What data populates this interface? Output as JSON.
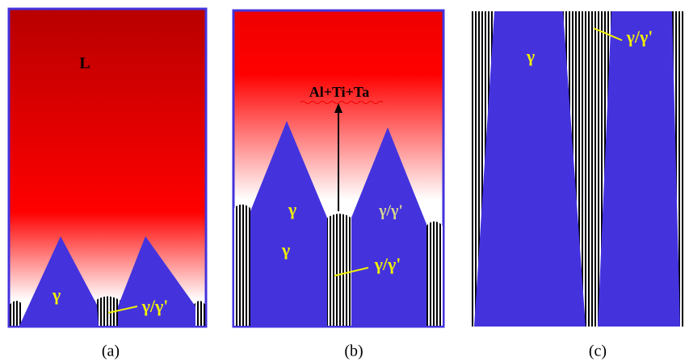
{
  "panels": [
    {
      "caption": "(a)",
      "labels": {
        "liquid": "L",
        "gamma": "γ",
        "gamma_prime": "γ/γ'"
      }
    },
    {
      "caption": "(b)",
      "labels": {
        "solute": "Al+Ti+Ta",
        "gamma_1": "γ",
        "gamma_2": "γ",
        "gamma_prime_1": "γ/γ'",
        "gamma_prime_2": "γ/γ'"
      }
    },
    {
      "caption": "(c)",
      "labels": {
        "gamma": "γ",
        "gamma_prime": "γ/γ'"
      }
    }
  ]
}
